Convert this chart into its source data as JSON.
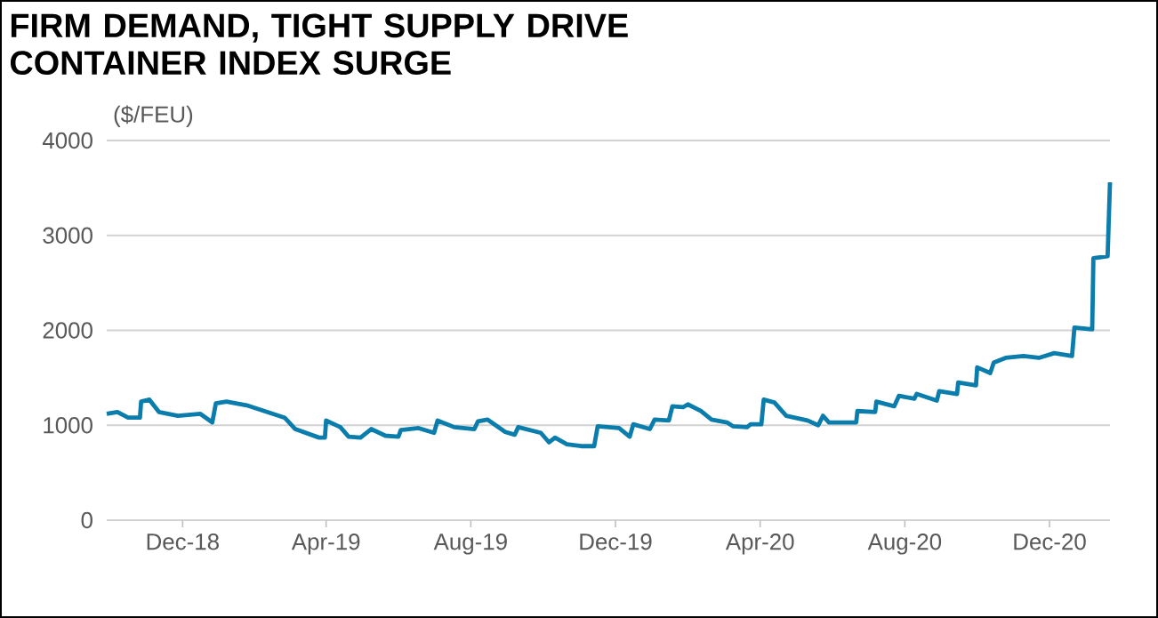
{
  "chart_data": {
    "type": "line",
    "title": "FIRM DEMAND, TIGHT SUPPLY DRIVE CONTAINER INDEX SURGE",
    "ylabel": "($/FEU)",
    "x": [
      "2018-09-28",
      "2018-10-07",
      "2018-10-16",
      "2018-10-26",
      "2018-10-27",
      "2018-11-03",
      "2018-11-11",
      "2018-11-27",
      "2018-12-16",
      "2018-12-26",
      "2018-12-29",
      "2019-01-07",
      "2019-01-24",
      "2019-02-25",
      "2019-03-06",
      "2019-03-26",
      "2019-03-31",
      "2019-04-01",
      "2019-04-13",
      "2019-04-20",
      "2019-04-30",
      "2019-05-09",
      "2019-05-21",
      "2019-06-01",
      "2019-06-03",
      "2019-06-18",
      "2019-07-01",
      "2019-07-04",
      "2019-07-18",
      "2019-08-04",
      "2019-08-07",
      "2019-08-15",
      "2019-08-30",
      "2019-09-07",
      "2019-09-10",
      "2019-09-29",
      "2019-10-06",
      "2019-10-11",
      "2019-10-21",
      "2019-11-02",
      "2019-11-13",
      "2019-11-16",
      "2019-12-04",
      "2019-12-13",
      "2019-12-16",
      "2019-12-30",
      "2020-01-03",
      "2020-01-15",
      "2020-01-18",
      "2020-01-27",
      "2020-01-31",
      "2020-02-11",
      "2020-02-20",
      "2020-03-04",
      "2020-03-09",
      "2020-03-21",
      "2020-03-24",
      "2020-04-02",
      "2020-04-04",
      "2020-04-13",
      "2020-04-23",
      "2020-05-11",
      "2020-05-20",
      "2020-05-24",
      "2020-05-29",
      "2020-06-21",
      "2020-06-22",
      "2020-07-07",
      "2020-07-08",
      "2020-07-23",
      "2020-07-27",
      "2020-08-09",
      "2020-08-11",
      "2020-08-28",
      "2020-08-30",
      "2020-09-14",
      "2020-09-15",
      "2020-09-30",
      "2020-10-01",
      "2020-10-12",
      "2020-10-15",
      "2020-10-25",
      "2020-11-09",
      "2020-11-22",
      "2020-12-05",
      "2020-12-20",
      "2020-12-22",
      "2021-01-06",
      "2021-01-07",
      "2021-01-19",
      "2021-01-21"
    ],
    "series": [
      {
        "color": "#0b7dac",
        "values": [
          1120,
          1140,
          1080,
          1080,
          1250,
          1270,
          1140,
          1100,
          1120,
          1030,
          1230,
          1250,
          1210,
          1080,
          960,
          870,
          870,
          1050,
          980,
          880,
          870,
          960,
          890,
          880,
          950,
          970,
          920,
          1050,
          980,
          960,
          1040,
          1060,
          930,
          900,
          980,
          920,
          820,
          870,
          800,
          780,
          780,
          990,
          970,
          880,
          1010,
          960,
          1060,
          1050,
          1200,
          1190,
          1220,
          1150,
          1060,
          1030,
          990,
          980,
          1010,
          1010,
          1270,
          1240,
          1100,
          1050,
          1000,
          1100,
          1030,
          1030,
          1150,
          1140,
          1250,
          1200,
          1310,
          1280,
          1330,
          1260,
          1360,
          1330,
          1450,
          1420,
          1610,
          1550,
          1660,
          1710,
          1730,
          1710,
          1760,
          1730,
          2030,
          2010,
          2760,
          2780,
          3560
        ]
      }
    ],
    "xlim": [
      "2018-09-28",
      "2021-01-21"
    ],
    "xticks": [
      {
        "value": "2018-12-01",
        "label": "Dec-18"
      },
      {
        "value": "2019-04-01",
        "label": "Apr-19"
      },
      {
        "value": "2019-08-01",
        "label": "Aug-19"
      },
      {
        "value": "2019-12-01",
        "label": "Dec-19"
      },
      {
        "value": "2020-04-01",
        "label": "Apr-20"
      },
      {
        "value": "2020-08-01",
        "label": "Aug-20"
      },
      {
        "value": "2020-12-01",
        "label": "Dec-20"
      }
    ],
    "ylim": [
      0,
      4000
    ],
    "yticks": [
      0,
      1000,
      2000,
      3000,
      4000
    ],
    "grid": "y",
    "marker": "none",
    "line_style": "solid"
  }
}
